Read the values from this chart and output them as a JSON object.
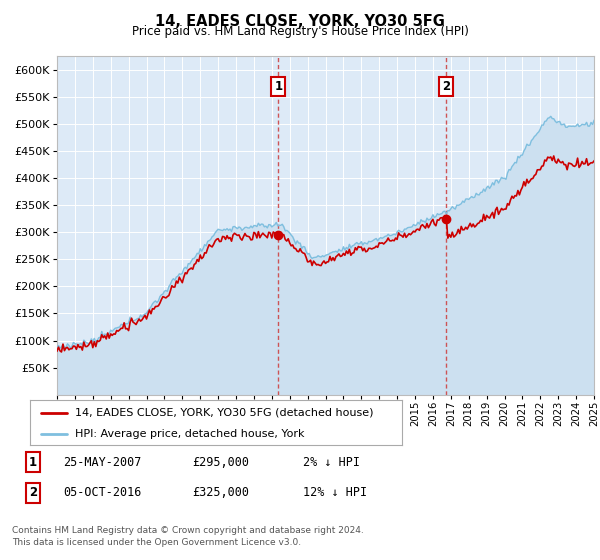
{
  "title": "14, EADES CLOSE, YORK, YO30 5FG",
  "subtitle": "Price paid vs. HM Land Registry's House Price Index (HPI)",
  "ylim": [
    0,
    625000
  ],
  "yticks": [
    0,
    50000,
    100000,
    150000,
    200000,
    250000,
    300000,
    350000,
    400000,
    450000,
    500000,
    550000,
    600000
  ],
  "background_color": "#ddeaf7",
  "line1_color": "#cc0000",
  "line2_color": "#7fbfdf",
  "line2_fill_color": "#cce0f0",
  "purchase1_year": 2007.37,
  "purchase1_price": 295000,
  "purchase2_year": 2016.75,
  "purchase2_price": 325000,
  "legend_line1": "14, EADES CLOSE, YORK, YO30 5FG (detached house)",
  "legend_line2": "HPI: Average price, detached house, York",
  "note1_label": "1",
  "note1_date": "25-MAY-2007",
  "note1_price": "£295,000",
  "note1_pct": "2% ↓ HPI",
  "note2_label": "2",
  "note2_date": "05-OCT-2016",
  "note2_price": "£325,000",
  "note2_pct": "12% ↓ HPI",
  "footer": "Contains HM Land Registry data © Crown copyright and database right 2024.\nThis data is licensed under the Open Government Licence v3.0.",
  "xmin": 1995,
  "xmax": 2025
}
